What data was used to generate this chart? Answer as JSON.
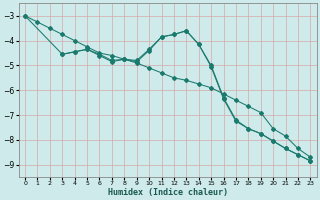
{
  "xlabel": "Humidex (Indice chaleur)",
  "background_color": "#ceeaea",
  "grid_color": "#b8d8d8",
  "line_color": "#1a7a6e",
  "line1_x": [
    0,
    1,
    2,
    3,
    4,
    5,
    6,
    7,
    8,
    9,
    10,
    11,
    12,
    13,
    14,
    15,
    16,
    17,
    18,
    19,
    20,
    21,
    22,
    23
  ],
  "line1_y": [
    -3.0,
    -3.25,
    -3.5,
    -3.75,
    -4.0,
    -4.25,
    -4.5,
    -4.6,
    -4.75,
    -4.9,
    -5.1,
    -5.3,
    -5.5,
    -5.6,
    -5.75,
    -5.9,
    -6.15,
    -6.4,
    -6.65,
    -6.9,
    -7.55,
    -7.85,
    -8.35,
    -8.7
  ],
  "line2_x": [
    3,
    4,
    5,
    6,
    7,
    8,
    9,
    10,
    11,
    12,
    13,
    14,
    15,
    16,
    17,
    18,
    19,
    20,
    21,
    22,
    23
  ],
  "line2_y": [
    -4.55,
    -4.45,
    -4.35,
    -4.55,
    -4.8,
    -4.75,
    -4.8,
    -4.35,
    -3.85,
    -3.75,
    -3.6,
    -4.15,
    -5.0,
    -6.3,
    -7.2,
    -7.55,
    -7.75,
    -8.05,
    -8.35,
    -8.6,
    -8.85
  ],
  "line3_x": [
    0,
    3,
    4,
    5,
    6,
    7,
    8,
    9,
    10,
    11,
    12,
    13,
    14,
    15,
    16,
    17,
    18,
    19,
    20,
    21,
    22,
    23
  ],
  "line3_y": [
    -3.0,
    -4.55,
    -4.45,
    -4.35,
    -4.6,
    -4.85,
    -4.75,
    -4.85,
    -4.4,
    -3.85,
    -3.75,
    -3.6,
    -4.15,
    -5.05,
    -6.35,
    -7.25,
    -7.55,
    -7.75,
    -8.05,
    -8.35,
    -8.6,
    -8.85
  ],
  "ylim": [
    -9.5,
    -2.5
  ],
  "xlim": [
    -0.5,
    23.5
  ],
  "yticks": [
    -3,
    -4,
    -5,
    -6,
    -7,
    -8,
    -9
  ],
  "xticks": [
    0,
    1,
    2,
    3,
    4,
    5,
    6,
    7,
    8,
    9,
    10,
    11,
    12,
    13,
    14,
    15,
    16,
    17,
    18,
    19,
    20,
    21,
    22,
    23
  ]
}
